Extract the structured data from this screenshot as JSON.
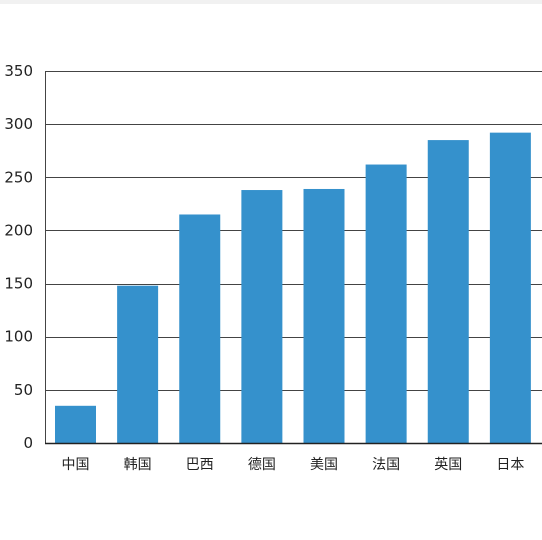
{
  "chart_data": {
    "type": "bar",
    "title": "",
    "xlabel": "",
    "ylabel": "",
    "categories": [
      "中国",
      "韩国",
      "巴西",
      "德国",
      "美国",
      "法国",
      "英国",
      "日本"
    ],
    "values": [
      35,
      148,
      215,
      238,
      239,
      262,
      285,
      292
    ],
    "ylim": [
      0,
      350
    ],
    "yticks": [
      0,
      50,
      100,
      150,
      200,
      250,
      300,
      350
    ],
    "grid": true,
    "legend": "none",
    "bar_color": "#3591cc",
    "grid_color": "#444444"
  }
}
